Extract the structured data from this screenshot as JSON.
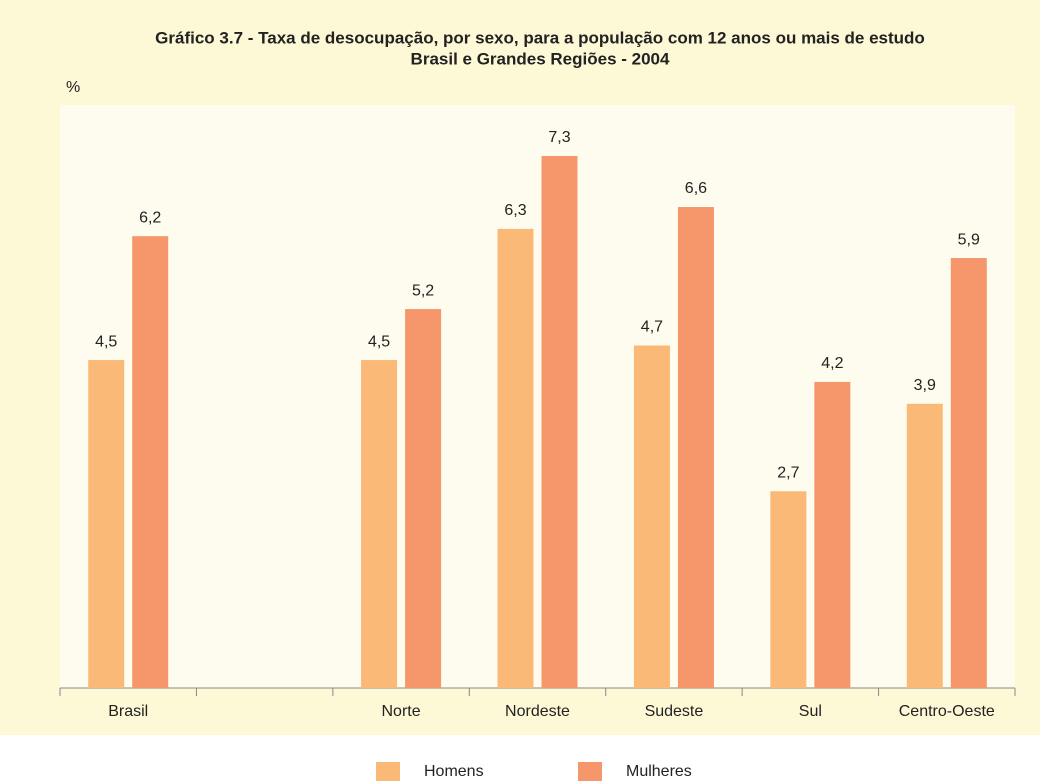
{
  "chart_data": {
    "type": "bar",
    "title": "Gráfico 3.7 - Taxa de desocupação, por sexo, para a população com 12 anos ou mais de estudo",
    "subtitle": "Brasil e Grandes Regiões - 2004",
    "y_label": "%",
    "categories": [
      "Brasil",
      null,
      "Norte",
      "Nordeste",
      "Sudeste",
      "Sul",
      "Centro-Oeste"
    ],
    "series": [
      {
        "name": "Homens",
        "color": "#fab977",
        "values": [
          4.5,
          null,
          4.5,
          6.3,
          4.7,
          2.7,
          3.9
        ],
        "value_labels": [
          "4,5",
          null,
          "4,5",
          "6,3",
          "4,7",
          "2,7",
          "3,9"
        ]
      },
      {
        "name": "Mulheres",
        "color": "#f5976b",
        "values": [
          6.2,
          null,
          5.2,
          7.3,
          6.6,
          4.2,
          5.9
        ],
        "value_labels": [
          "6,2",
          null,
          "5,2",
          "7,3",
          "6,6",
          "4,2",
          "5,9"
        ]
      }
    ],
    "ylim": [
      0,
      8
    ]
  }
}
